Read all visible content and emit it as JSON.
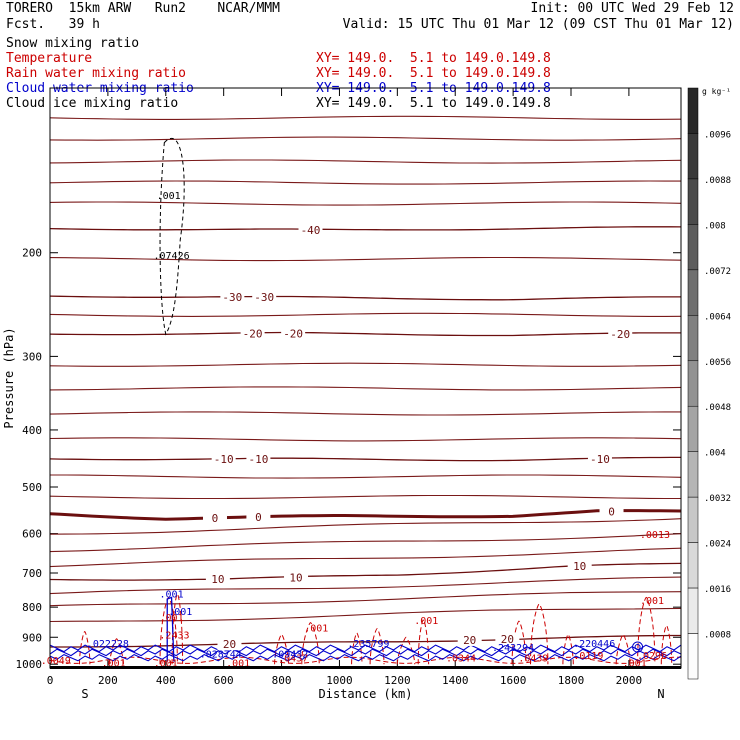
{
  "header": {
    "model": "TORERO  15km ARW   Run2    NCAR/MMM",
    "fcst": "Fcst.   39 h",
    "init": "Init: 00 UTC Wed 29 Feb 12",
    "valid": "Valid: 15 UTC Thu 01 Mar 12 (09 CST Thu 01 Mar 12)"
  },
  "legend_items": [
    {
      "label": "Snow mixing ratio",
      "color": "#000000",
      "xy": ""
    },
    {
      "label": "Temperature",
      "color": "#cc0000",
      "xy": "XY= 149.0.  5.1 to 149.0.149.8"
    },
    {
      "label": "Rain water mixing ratio",
      "color": "#cc0000",
      "xy": "XY= 149.0.  5.1 to 149.0.149.8"
    },
    {
      "label": "Cloud water mixing ratio",
      "color": "#0000cc",
      "xy": "XY= 149.0.  5.1 to 149.0.149.8"
    },
    {
      "label": "Cloud ice mixing ratio",
      "color": "#000000",
      "xy": "XY= 149.0.  5.1 to 149.0.149.8"
    }
  ],
  "colorbar": {
    "unit": "g kg⁻¹",
    "labels": [
      ".0096",
      ".0088",
      ".008",
      ".0072",
      ".0064",
      ".0056",
      ".0048",
      ".004",
      ".0032",
      ".0024",
      ".0016",
      ".0008"
    ]
  },
  "chart_data": {
    "type": "contour",
    "xlabel": "Distance (km)",
    "ylabel": "Pressure (hPa)",
    "x_ticks": [
      0,
      200,
      400,
      600,
      800,
      1000,
      1200,
      1400,
      1600,
      1800,
      2000
    ],
    "y_ticks": [
      200,
      300,
      400,
      500,
      600,
      700,
      800,
      900,
      1000
    ],
    "xlim": [
      0,
      2180
    ],
    "ylim": [
      1015,
      105
    ],
    "y_scale": "log",
    "endpoints": {
      "left": "S",
      "right": "N"
    },
    "temperature_contours": [
      {
        "value": -40,
        "p": [
          [
            0,
            182
          ],
          [
            1000,
            183
          ],
          [
            2180,
            181
          ]
        ],
        "labels_at": [
          900
        ]
      },
      {
        "value": -30,
        "p": [
          [
            0,
            237
          ],
          [
            800,
            238
          ],
          [
            1600,
            240
          ],
          [
            2180,
            238
          ]
        ],
        "labels_at": [
          630,
          740
        ]
      },
      {
        "value": -20,
        "p": [
          [
            0,
            275
          ],
          [
            800,
            274
          ],
          [
            1600,
            276
          ],
          [
            2180,
            274
          ]
        ],
        "labels_at": [
          700,
          840,
          1970
        ]
      },
      {
        "value": -10,
        "p": [
          [
            0,
            448
          ],
          [
            800,
            448
          ],
          [
            1600,
            450
          ],
          [
            2180,
            446
          ]
        ],
        "labels_at": [
          600,
          720,
          1900
        ]
      },
      {
        "value": 0,
        "p": [
          [
            0,
            555
          ],
          [
            400,
            566
          ],
          [
            1000,
            560
          ],
          [
            1600,
            560
          ],
          [
            1900,
            550
          ],
          [
            2180,
            550
          ]
        ],
        "labels_at": [
          570,
          720,
          1940
        ]
      },
      {
        "value": 10,
        "p": [
          [
            0,
            718
          ],
          [
            600,
            717
          ],
          [
            1200,
            705
          ],
          [
            1800,
            682
          ],
          [
            2180,
            675
          ]
        ],
        "labels_at": [
          580,
          850,
          1830
        ]
      },
      {
        "value": 20,
        "p": [
          [
            0,
            935
          ],
          [
            600,
            925
          ],
          [
            1200,
            915
          ],
          [
            1800,
            902
          ],
          [
            2180,
            895
          ]
        ],
        "labels_at": [
          620,
          1450,
          1580
        ]
      }
    ],
    "isotherms_unlabeled": [
      -60,
      -55,
      -50,
      -45,
      -35,
      -25,
      -15,
      -5,
      5,
      15
    ],
    "rain_labels": [
      ".001",
      ".001",
      ".001",
      ".001",
      ".001",
      ".001",
      ".001",
      ".001",
      ".0013"
    ],
    "cloud_water_labels": [
      ".001",
      ".001",
      ".022228",
      ".028744",
      ".09432",
      ".235799",
      ".243294",
      ".220446"
    ],
    "rain_max_labels": [
      ".0049",
      ".2433",
      ".0437",
      ".0344",
      ".0439",
      ".0119",
      ".0296",
      ".0013"
    ],
    "cloud_ice_labels": [
      ".001",
      ".07426"
    ]
  }
}
